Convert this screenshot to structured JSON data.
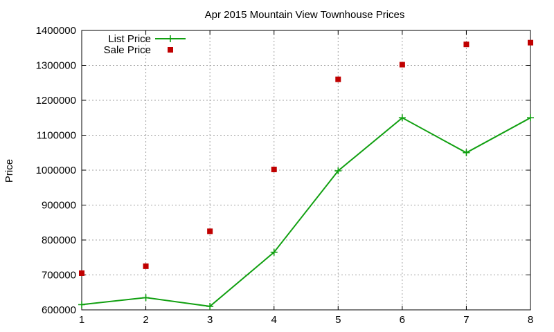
{
  "chart_data": {
    "type": "line",
    "title": "Apr 2015 Mountain View Townhouse Prices",
    "xlabel": "",
    "ylabel": "Price",
    "x": [
      1,
      2,
      3,
      4,
      5,
      6,
      7,
      8
    ],
    "xlim": [
      1,
      8
    ],
    "ylim": [
      600000,
      1400000
    ],
    "x_ticks": [
      "1",
      "2",
      "3",
      "4",
      "5",
      "6",
      "7",
      "8"
    ],
    "y_ticks": [
      "600000",
      "700000",
      "800000",
      "900000",
      "1000000",
      "1100000",
      "1200000",
      "1300000",
      "1400000"
    ],
    "grid": true,
    "legend_position": "top-left",
    "series": [
      {
        "name": "List Price",
        "style": "lines+markers",
        "marker": "plus",
        "color": "#11a011",
        "values": [
          615000,
          635000,
          610000,
          765000,
          998000,
          1150000,
          1050000,
          1150000
        ]
      },
      {
        "name": "Sale Price",
        "style": "markers",
        "marker": "square",
        "color": "#c00000",
        "values": [
          705000,
          725000,
          825000,
          1002000,
          1260000,
          1302000,
          1360000,
          1365000
        ]
      }
    ]
  }
}
